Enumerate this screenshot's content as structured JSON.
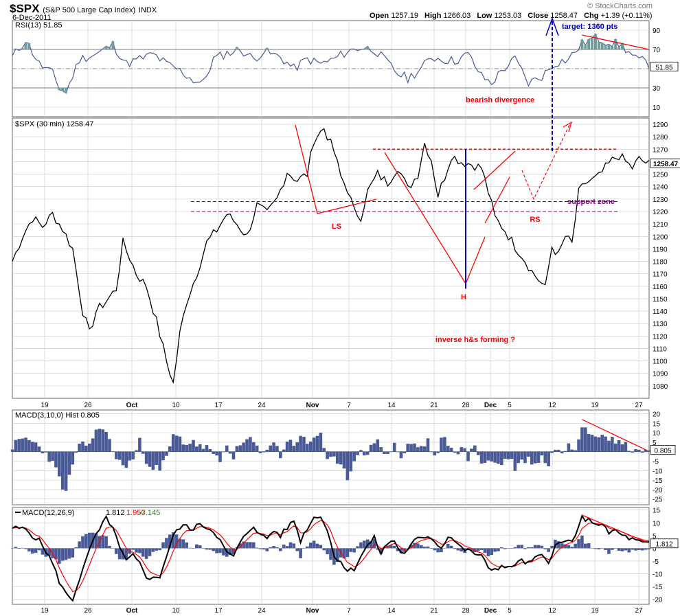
{
  "header": {
    "symbol": "$SPX",
    "name": "(S&P 500 Large Cap Index)",
    "exchange": "INDX",
    "date": "6-Dec-2011",
    "open_label": "Open",
    "open": "1257.19",
    "high_label": "High",
    "high": "1266.03",
    "low_label": "Low",
    "low": "1253.03",
    "close_label": "Close",
    "close": "1258.47",
    "chg_label": "Chg",
    "chg": "+1.39 (+0.11%)",
    "watermark": "© StockCharts.com"
  },
  "colors": {
    "price": "#000000",
    "annotation": "#ff0000",
    "support": "#800080",
    "target": "#0000cc",
    "hist_fill": "#4a5a96",
    "rsi_line": "#4a5a96",
    "rsi_fill": "#6e9c9a",
    "signal": "#ff0000",
    "grid": "#c8c8c8"
  },
  "chart_data": [
    {
      "type": "line",
      "panel": "RSI",
      "label": "RSI(13) 51.85",
      "current": 51.85,
      "ylim": [
        0,
        100
      ],
      "yticks": [
        10,
        30,
        50,
        70,
        90
      ],
      "reference_lines": [
        70,
        30
      ],
      "anchors": [
        [
          0,
          62
        ],
        [
          4,
          80
        ],
        [
          8,
          55
        ],
        [
          12,
          45
        ],
        [
          14,
          30
        ],
        [
          16,
          25
        ],
        [
          20,
          60
        ],
        [
          25,
          65
        ],
        [
          30,
          75
        ],
        [
          34,
          55
        ],
        [
          38,
          60
        ],
        [
          42,
          65
        ],
        [
          46,
          55
        ],
        [
          50,
          48
        ],
        [
          54,
          38
        ],
        [
          57,
          35
        ],
        [
          60,
          60
        ],
        [
          64,
          66
        ],
        [
          68,
          70
        ],
        [
          72,
          60
        ],
        [
          75,
          68
        ],
        [
          80,
          62
        ],
        [
          84,
          50
        ],
        [
          88,
          60
        ],
        [
          92,
          55
        ],
        [
          96,
          60
        ],
        [
          100,
          68
        ],
        [
          104,
          72
        ],
        [
          108,
          70
        ],
        [
          112,
          56
        ],
        [
          115,
          45
        ],
        [
          118,
          40
        ],
        [
          122,
          50
        ],
        [
          125,
          62
        ],
        [
          128,
          60
        ],
        [
          132,
          58
        ],
        [
          136,
          65
        ],
        [
          140,
          42
        ],
        [
          143,
          35
        ],
        [
          146,
          48
        ],
        [
          150,
          60
        ],
        [
          154,
          35
        ],
        [
          158,
          42
        ],
        [
          162,
          56
        ],
        [
          166,
          60
        ],
        [
          170,
          76
        ],
        [
          174,
          82
        ],
        [
          178,
          78
        ],
        [
          182,
          74
        ],
        [
          186,
          60
        ],
        [
          188,
          58
        ],
        [
          190,
          55
        ]
      ],
      "annotations": [
        {
          "text": "bearish divergence"
        }
      ]
    },
    {
      "type": "line",
      "panel": "Price",
      "label": "$SPX (30 min) 1258.47",
      "current": 1258.47,
      "ylim": [
        1070,
        1295
      ],
      "yticks": [
        1080,
        1090,
        1100,
        1110,
        1120,
        1130,
        1140,
        1150,
        1160,
        1170,
        1180,
        1190,
        1200,
        1210,
        1220,
        1230,
        1240,
        1250,
        1260,
        1270,
        1280,
        1290
      ],
      "x_tick_labels": [
        "19",
        "26",
        "Oct",
        "10",
        "17",
        "24",
        "Nov",
        "7",
        "14",
        "21",
        "28",
        "Dec",
        "5",
        "12",
        "19",
        "27"
      ],
      "anchors": [
        [
          0,
          1180
        ],
        [
          3,
          1200
        ],
        [
          6,
          1215
        ],
        [
          9,
          1208
        ],
        [
          12,
          1218
        ],
        [
          15,
          1206
        ],
        [
          18,
          1190
        ],
        [
          21,
          1140
        ],
        [
          23,
          1122
        ],
        [
          25,
          1140
        ],
        [
          28,
          1148
        ],
        [
          31,
          1158
        ],
        [
          33,
          1195
        ],
        [
          35,
          1183
        ],
        [
          37,
          1170
        ],
        [
          40,
          1160
        ],
        [
          43,
          1132
        ],
        [
          46,
          1100
        ],
        [
          48,
          1082
        ],
        [
          50,
          1122
        ],
        [
          52,
          1148
        ],
        [
          55,
          1170
        ],
        [
          58,
          1195
        ],
        [
          61,
          1205
        ],
        [
          64,
          1218
        ],
        [
          67,
          1210
        ],
        [
          70,
          1200
        ],
        [
          73,
          1225
        ],
        [
          76,
          1218
        ],
        [
          79,
          1230
        ],
        [
          82,
          1252
        ],
        [
          85,
          1245
        ],
        [
          88,
          1250
        ],
        [
          90,
          1278
        ],
        [
          93,
          1287
        ],
        [
          96,
          1268
        ],
        [
          98,
          1248
        ],
        [
          100,
          1238
        ],
        [
          102,
          1220
        ],
        [
          104,
          1216
        ],
        [
          106,
          1236
        ],
        [
          109,
          1250
        ],
        [
          112,
          1243
        ],
        [
          115,
          1256
        ],
        [
          118,
          1238
        ],
        [
          121,
          1250
        ],
        [
          123,
          1275
        ],
        [
          125,
          1262
        ],
        [
          127,
          1233
        ],
        [
          129,
          1248
        ],
        [
          131,
          1265
        ],
        [
          134,
          1260
        ],
        [
          137,
          1258
        ],
        [
          140,
          1255
        ],
        [
          142,
          1236
        ],
        [
          144,
          1215
        ],
        [
          147,
          1205
        ],
        [
          150,
          1192
        ],
        [
          152,
          1185
        ],
        [
          155,
          1172
        ],
        [
          158,
          1162
        ],
        [
          159,
          1158
        ],
        [
          161,
          1192
        ],
        [
          163,
          1185
        ],
        [
          165,
          1200
        ],
        [
          167,
          1194
        ],
        [
          169,
          1235
        ],
        [
          171,
          1243
        ],
        [
          173,
          1245
        ],
        [
          175,
          1248
        ],
        [
          177,
          1255
        ],
        [
          179,
          1261
        ],
        [
          181,
          1265
        ],
        [
          183,
          1260
        ],
        [
          185,
          1255
        ],
        [
          187,
          1262
        ],
        [
          190,
          1258
        ]
      ],
      "annotations": [
        {
          "text": "LS"
        },
        {
          "text": "H"
        },
        {
          "text": "RS"
        },
        {
          "text": "support zone"
        },
        {
          "text": "inverse h&s forming ?"
        },
        {
          "text": "target: 1360 pts"
        }
      ],
      "neckline": 1270,
      "support_zone": [
        1220,
        1228
      ]
    },
    {
      "type": "bar",
      "panel": "MACD Histogram",
      "label": "MACD(3,10,0) Hist 0.805",
      "current": 0.805,
      "ylim": [
        -28,
        22
      ],
      "yticks": [
        -25,
        -20,
        -15,
        -10,
        -5,
        0,
        5,
        10,
        15,
        20
      ],
      "anchors": [
        [
          0,
          3
        ],
        [
          4,
          7
        ],
        [
          8,
          3
        ],
        [
          11,
          -3
        ],
        [
          13,
          -10
        ],
        [
          16,
          -22
        ],
        [
          18,
          -6
        ],
        [
          20,
          2
        ],
        [
          23,
          5
        ],
        [
          25,
          10
        ],
        [
          27,
          14
        ],
        [
          29,
          5
        ],
        [
          31,
          -3
        ],
        [
          33,
          -8
        ],
        [
          36,
          -4
        ],
        [
          38,
          5
        ],
        [
          40,
          -4
        ],
        [
          42,
          -8
        ],
        [
          44,
          -10
        ],
        [
          46,
          -3
        ],
        [
          48,
          8
        ],
        [
          50,
          7
        ],
        [
          52,
          4
        ],
        [
          54,
          6
        ],
        [
          56,
          2
        ],
        [
          58,
          3
        ],
        [
          60,
          -3
        ],
        [
          62,
          -5
        ],
        [
          64,
          3
        ],
        [
          66,
          -2
        ],
        [
          68,
          3
        ],
        [
          70,
          6
        ],
        [
          72,
          5
        ],
        [
          74,
          -2
        ],
        [
          76,
          3
        ],
        [
          78,
          5
        ],
        [
          80,
          -2
        ],
        [
          82,
          6
        ],
        [
          84,
          4
        ],
        [
          86,
          9
        ],
        [
          88,
          3
        ],
        [
          90,
          8
        ],
        [
          92,
          10
        ],
        [
          94,
          -4
        ],
        [
          96,
          -5
        ],
        [
          98,
          -9
        ],
        [
          100,
          -13
        ],
        [
          102,
          -5
        ],
        [
          104,
          3
        ],
        [
          106,
          -3
        ],
        [
          108,
          6
        ],
        [
          110,
          4
        ],
        [
          112,
          -3
        ],
        [
          114,
          5
        ],
        [
          116,
          -4
        ],
        [
          118,
          3
        ],
        [
          120,
          4
        ],
        [
          122,
          2
        ],
        [
          124,
          6
        ],
        [
          126,
          -4
        ],
        [
          128,
          6
        ],
        [
          130,
          5
        ],
        [
          132,
          -2
        ],
        [
          134,
          4
        ],
        [
          136,
          -4
        ],
        [
          138,
          3
        ],
        [
          140,
          -5
        ],
        [
          142,
          -5
        ],
        [
          144,
          -6
        ],
        [
          146,
          -6
        ],
        [
          148,
          -3
        ],
        [
          150,
          -8
        ],
        [
          152,
          -5
        ],
        [
          154,
          -4
        ],
        [
          156,
          -6
        ],
        [
          158,
          -3
        ],
        [
          160,
          -7
        ],
        [
          162,
          3
        ],
        [
          164,
          -2
        ],
        [
          166,
          5
        ],
        [
          168,
          2
        ],
        [
          170,
          15
        ],
        [
          172,
          11
        ],
        [
          174,
          9
        ],
        [
          176,
          11
        ],
        [
          178,
          8
        ],
        [
          180,
          4
        ],
        [
          182,
          6
        ],
        [
          184,
          1
        ],
        [
          186,
          2
        ],
        [
          188,
          0
        ],
        [
          190,
          0.8
        ]
      ]
    },
    {
      "type": "line",
      "panel": "MACD",
      "label": "MACD(12,26,9)",
      "values_label": [
        "1.812",
        "1.957",
        "-0.145"
      ],
      "ylim": [
        -22,
        16
      ],
      "yticks": [
        -20,
        -15,
        -10,
        -5,
        0,
        5,
        10,
        15
      ],
      "x_tick_labels": [
        "19",
        "26",
        "Oct",
        "10",
        "17",
        "24",
        "Nov",
        "7",
        "14",
        "21",
        "28",
        "Dec",
        "5",
        "12",
        "19",
        "27"
      ],
      "anchors": [
        [
          0,
          8
        ],
        [
          4,
          7.5
        ],
        [
          6,
          5
        ],
        [
          8,
          3
        ],
        [
          10,
          -1
        ],
        [
          12,
          -6
        ],
        [
          14,
          -13
        ],
        [
          16,
          -18
        ],
        [
          18,
          -20
        ],
        [
          20,
          -12
        ],
        [
          22,
          -5
        ],
        [
          24,
          3
        ],
        [
          26,
          7
        ],
        [
          28,
          12
        ],
        [
          30,
          8
        ],
        [
          32,
          0
        ],
        [
          34,
          -5
        ],
        [
          36,
          -3
        ],
        [
          38,
          -6
        ],
        [
          40,
          -11
        ],
        [
          42,
          -12
        ],
        [
          44,
          -11
        ],
        [
          46,
          -3
        ],
        [
          48,
          5
        ],
        [
          50,
          8
        ],
        [
          52,
          9
        ],
        [
          54,
          7
        ],
        [
          56,
          10
        ],
        [
          58,
          8
        ],
        [
          60,
          7
        ],
        [
          62,
          3
        ],
        [
          64,
          -2
        ],
        [
          66,
          -3
        ],
        [
          68,
          2
        ],
        [
          70,
          6
        ],
        [
          72,
          9
        ],
        [
          74,
          5
        ],
        [
          76,
          4
        ],
        [
          78,
          7
        ],
        [
          80,
          5
        ],
        [
          82,
          8
        ],
        [
          84,
          11
        ],
        [
          86,
          3
        ],
        [
          88,
          8
        ],
        [
          90,
          12
        ],
        [
          92,
          13
        ],
        [
          94,
          7
        ],
        [
          96,
          -3
        ],
        [
          98,
          -5
        ],
        [
          100,
          -9
        ],
        [
          102,
          -8
        ],
        [
          104,
          -3
        ],
        [
          106,
          1
        ],
        [
          108,
          4
        ],
        [
          110,
          -2
        ],
        [
          112,
          2
        ],
        [
          114,
          3
        ],
        [
          116,
          -2
        ],
        [
          118,
          -1
        ],
        [
          120,
          3
        ],
        [
          122,
          4
        ],
        [
          124,
          5
        ],
        [
          126,
          3
        ],
        [
          128,
          0
        ],
        [
          130,
          5
        ],
        [
          132,
          3
        ],
        [
          134,
          0
        ],
        [
          136,
          -1
        ],
        [
          138,
          -2
        ],
        [
          140,
          -3
        ],
        [
          142,
          -8
        ],
        [
          144,
          -8
        ],
        [
          146,
          -7
        ],
        [
          148,
          -8
        ],
        [
          150,
          -6
        ],
        [
          152,
          -5
        ],
        [
          154,
          -6
        ],
        [
          156,
          -4
        ],
        [
          158,
          -3
        ],
        [
          160,
          -5
        ],
        [
          162,
          1
        ],
        [
          164,
          2
        ],
        [
          166,
          3
        ],
        [
          168,
          4
        ],
        [
          170,
          12
        ],
        [
          172,
          11
        ],
        [
          174,
          10
        ],
        [
          176,
          9
        ],
        [
          178,
          6
        ],
        [
          180,
          7
        ],
        [
          182,
          5
        ],
        [
          184,
          4
        ],
        [
          186,
          3
        ],
        [
          188,
          2
        ],
        [
          190,
          1.8
        ]
      ]
    }
  ]
}
